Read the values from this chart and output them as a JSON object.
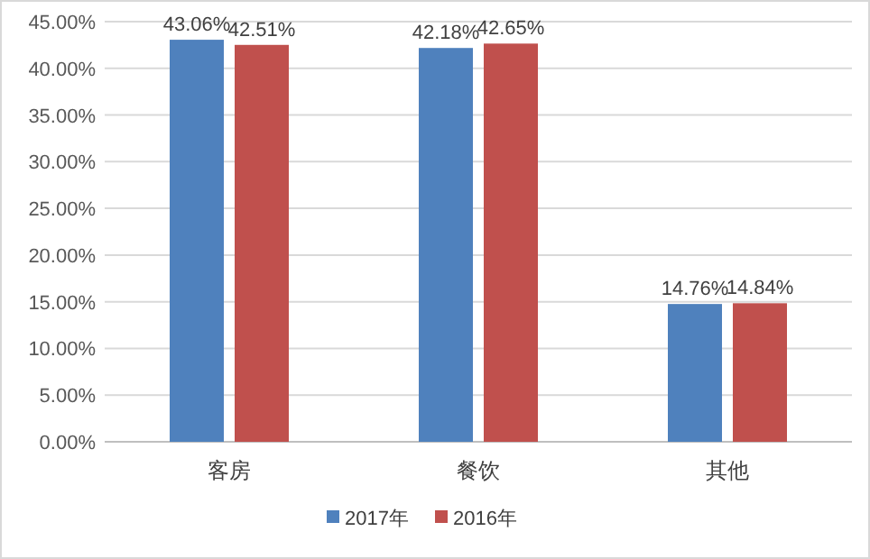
{
  "chart_data": {
    "type": "bar",
    "categories": [
      "客房",
      "餐饮",
      "其他"
    ],
    "series": [
      {
        "name": "2017年",
        "color": "#4f81bd",
        "values": [
          43.06,
          42.18,
          14.76
        ],
        "value_labels": [
          "43.06%",
          "42.18%",
          "14.76%"
        ]
      },
      {
        "name": "2016年",
        "color": "#c0504d",
        "values": [
          42.51,
          42.65,
          14.84
        ],
        "value_labels": [
          "42.51%",
          "42.65%",
          "14.84%"
        ]
      }
    ],
    "ylim": [
      0,
      45
    ],
    "yticks": [
      {
        "value": 0,
        "label": "0.00%"
      },
      {
        "value": 5,
        "label": "5.00%"
      },
      {
        "value": 10,
        "label": "10.00%"
      },
      {
        "value": 15,
        "label": "15.00%"
      },
      {
        "value": 20,
        "label": "20.00%"
      },
      {
        "value": 25,
        "label": "25.00%"
      },
      {
        "value": 30,
        "label": "30.00%"
      },
      {
        "value": 35,
        "label": "35.00%"
      },
      {
        "value": 40,
        "label": "40.00%"
      },
      {
        "value": 45,
        "label": "45.00%"
      }
    ],
    "grid": "y",
    "legend": "bottom"
  }
}
